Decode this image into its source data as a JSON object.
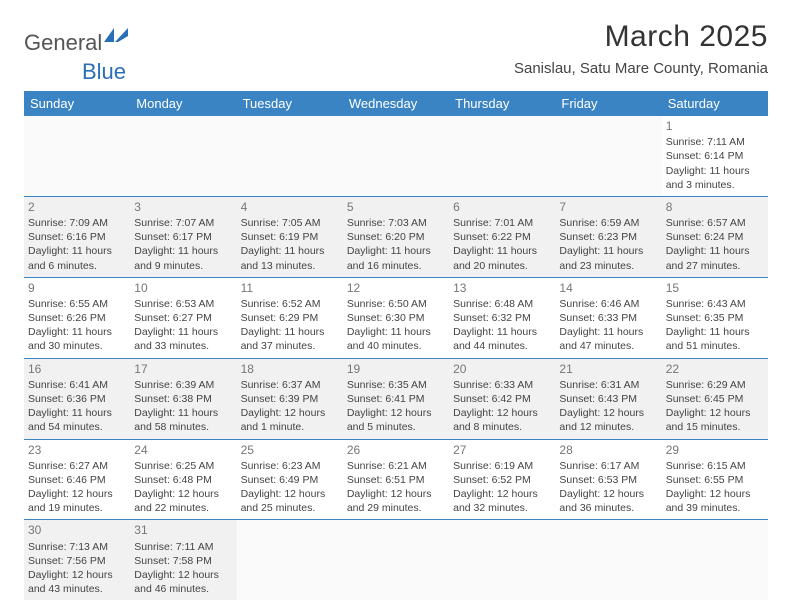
{
  "logo": {
    "part1": "General",
    "part2": "Blue"
  },
  "title": "March 2025",
  "location": "Sanislau, Satu Mare County, Romania",
  "colors": {
    "header_bg": "#3b84c4",
    "header_text": "#ffffff",
    "row_border": "#3b84c4",
    "alt_row_bg": "#f3f3f3",
    "text": "#444444",
    "logo_blue": "#2a6fb5"
  },
  "weekdays": [
    "Sunday",
    "Monday",
    "Tuesday",
    "Wednesday",
    "Thursday",
    "Friday",
    "Saturday"
  ],
  "weeks": [
    [
      null,
      null,
      null,
      null,
      null,
      null,
      {
        "n": "1",
        "sr": "Sunrise: 7:11 AM",
        "ss": "Sunset: 6:14 PM",
        "d1": "Daylight: 11 hours",
        "d2": "and 3 minutes."
      }
    ],
    [
      {
        "n": "2",
        "sr": "Sunrise: 7:09 AM",
        "ss": "Sunset: 6:16 PM",
        "d1": "Daylight: 11 hours",
        "d2": "and 6 minutes."
      },
      {
        "n": "3",
        "sr": "Sunrise: 7:07 AM",
        "ss": "Sunset: 6:17 PM",
        "d1": "Daylight: 11 hours",
        "d2": "and 9 minutes."
      },
      {
        "n": "4",
        "sr": "Sunrise: 7:05 AM",
        "ss": "Sunset: 6:19 PM",
        "d1": "Daylight: 11 hours",
        "d2": "and 13 minutes."
      },
      {
        "n": "5",
        "sr": "Sunrise: 7:03 AM",
        "ss": "Sunset: 6:20 PM",
        "d1": "Daylight: 11 hours",
        "d2": "and 16 minutes."
      },
      {
        "n": "6",
        "sr": "Sunrise: 7:01 AM",
        "ss": "Sunset: 6:22 PM",
        "d1": "Daylight: 11 hours",
        "d2": "and 20 minutes."
      },
      {
        "n": "7",
        "sr": "Sunrise: 6:59 AM",
        "ss": "Sunset: 6:23 PM",
        "d1": "Daylight: 11 hours",
        "d2": "and 23 minutes."
      },
      {
        "n": "8",
        "sr": "Sunrise: 6:57 AM",
        "ss": "Sunset: 6:24 PM",
        "d1": "Daylight: 11 hours",
        "d2": "and 27 minutes."
      }
    ],
    [
      {
        "n": "9",
        "sr": "Sunrise: 6:55 AM",
        "ss": "Sunset: 6:26 PM",
        "d1": "Daylight: 11 hours",
        "d2": "and 30 minutes."
      },
      {
        "n": "10",
        "sr": "Sunrise: 6:53 AM",
        "ss": "Sunset: 6:27 PM",
        "d1": "Daylight: 11 hours",
        "d2": "and 33 minutes."
      },
      {
        "n": "11",
        "sr": "Sunrise: 6:52 AM",
        "ss": "Sunset: 6:29 PM",
        "d1": "Daylight: 11 hours",
        "d2": "and 37 minutes."
      },
      {
        "n": "12",
        "sr": "Sunrise: 6:50 AM",
        "ss": "Sunset: 6:30 PM",
        "d1": "Daylight: 11 hours",
        "d2": "and 40 minutes."
      },
      {
        "n": "13",
        "sr": "Sunrise: 6:48 AM",
        "ss": "Sunset: 6:32 PM",
        "d1": "Daylight: 11 hours",
        "d2": "and 44 minutes."
      },
      {
        "n": "14",
        "sr": "Sunrise: 6:46 AM",
        "ss": "Sunset: 6:33 PM",
        "d1": "Daylight: 11 hours",
        "d2": "and 47 minutes."
      },
      {
        "n": "15",
        "sr": "Sunrise: 6:43 AM",
        "ss": "Sunset: 6:35 PM",
        "d1": "Daylight: 11 hours",
        "d2": "and 51 minutes."
      }
    ],
    [
      {
        "n": "16",
        "sr": "Sunrise: 6:41 AM",
        "ss": "Sunset: 6:36 PM",
        "d1": "Daylight: 11 hours",
        "d2": "and 54 minutes."
      },
      {
        "n": "17",
        "sr": "Sunrise: 6:39 AM",
        "ss": "Sunset: 6:38 PM",
        "d1": "Daylight: 11 hours",
        "d2": "and 58 minutes."
      },
      {
        "n": "18",
        "sr": "Sunrise: 6:37 AM",
        "ss": "Sunset: 6:39 PM",
        "d1": "Daylight: 12 hours",
        "d2": "and 1 minute."
      },
      {
        "n": "19",
        "sr": "Sunrise: 6:35 AM",
        "ss": "Sunset: 6:41 PM",
        "d1": "Daylight: 12 hours",
        "d2": "and 5 minutes."
      },
      {
        "n": "20",
        "sr": "Sunrise: 6:33 AM",
        "ss": "Sunset: 6:42 PM",
        "d1": "Daylight: 12 hours",
        "d2": "and 8 minutes."
      },
      {
        "n": "21",
        "sr": "Sunrise: 6:31 AM",
        "ss": "Sunset: 6:43 PM",
        "d1": "Daylight: 12 hours",
        "d2": "and 12 minutes."
      },
      {
        "n": "22",
        "sr": "Sunrise: 6:29 AM",
        "ss": "Sunset: 6:45 PM",
        "d1": "Daylight: 12 hours",
        "d2": "and 15 minutes."
      }
    ],
    [
      {
        "n": "23",
        "sr": "Sunrise: 6:27 AM",
        "ss": "Sunset: 6:46 PM",
        "d1": "Daylight: 12 hours",
        "d2": "and 19 minutes."
      },
      {
        "n": "24",
        "sr": "Sunrise: 6:25 AM",
        "ss": "Sunset: 6:48 PM",
        "d1": "Daylight: 12 hours",
        "d2": "and 22 minutes."
      },
      {
        "n": "25",
        "sr": "Sunrise: 6:23 AM",
        "ss": "Sunset: 6:49 PM",
        "d1": "Daylight: 12 hours",
        "d2": "and 25 minutes."
      },
      {
        "n": "26",
        "sr": "Sunrise: 6:21 AM",
        "ss": "Sunset: 6:51 PM",
        "d1": "Daylight: 12 hours",
        "d2": "and 29 minutes."
      },
      {
        "n": "27",
        "sr": "Sunrise: 6:19 AM",
        "ss": "Sunset: 6:52 PM",
        "d1": "Daylight: 12 hours",
        "d2": "and 32 minutes."
      },
      {
        "n": "28",
        "sr": "Sunrise: 6:17 AM",
        "ss": "Sunset: 6:53 PM",
        "d1": "Daylight: 12 hours",
        "d2": "and 36 minutes."
      },
      {
        "n": "29",
        "sr": "Sunrise: 6:15 AM",
        "ss": "Sunset: 6:55 PM",
        "d1": "Daylight: 12 hours",
        "d2": "and 39 minutes."
      }
    ],
    [
      {
        "n": "30",
        "sr": "Sunrise: 7:13 AM",
        "ss": "Sunset: 7:56 PM",
        "d1": "Daylight: 12 hours",
        "d2": "and 43 minutes."
      },
      {
        "n": "31",
        "sr": "Sunrise: 7:11 AM",
        "ss": "Sunset: 7:58 PM",
        "d1": "Daylight: 12 hours",
        "d2": "and 46 minutes."
      },
      null,
      null,
      null,
      null,
      null
    ]
  ]
}
